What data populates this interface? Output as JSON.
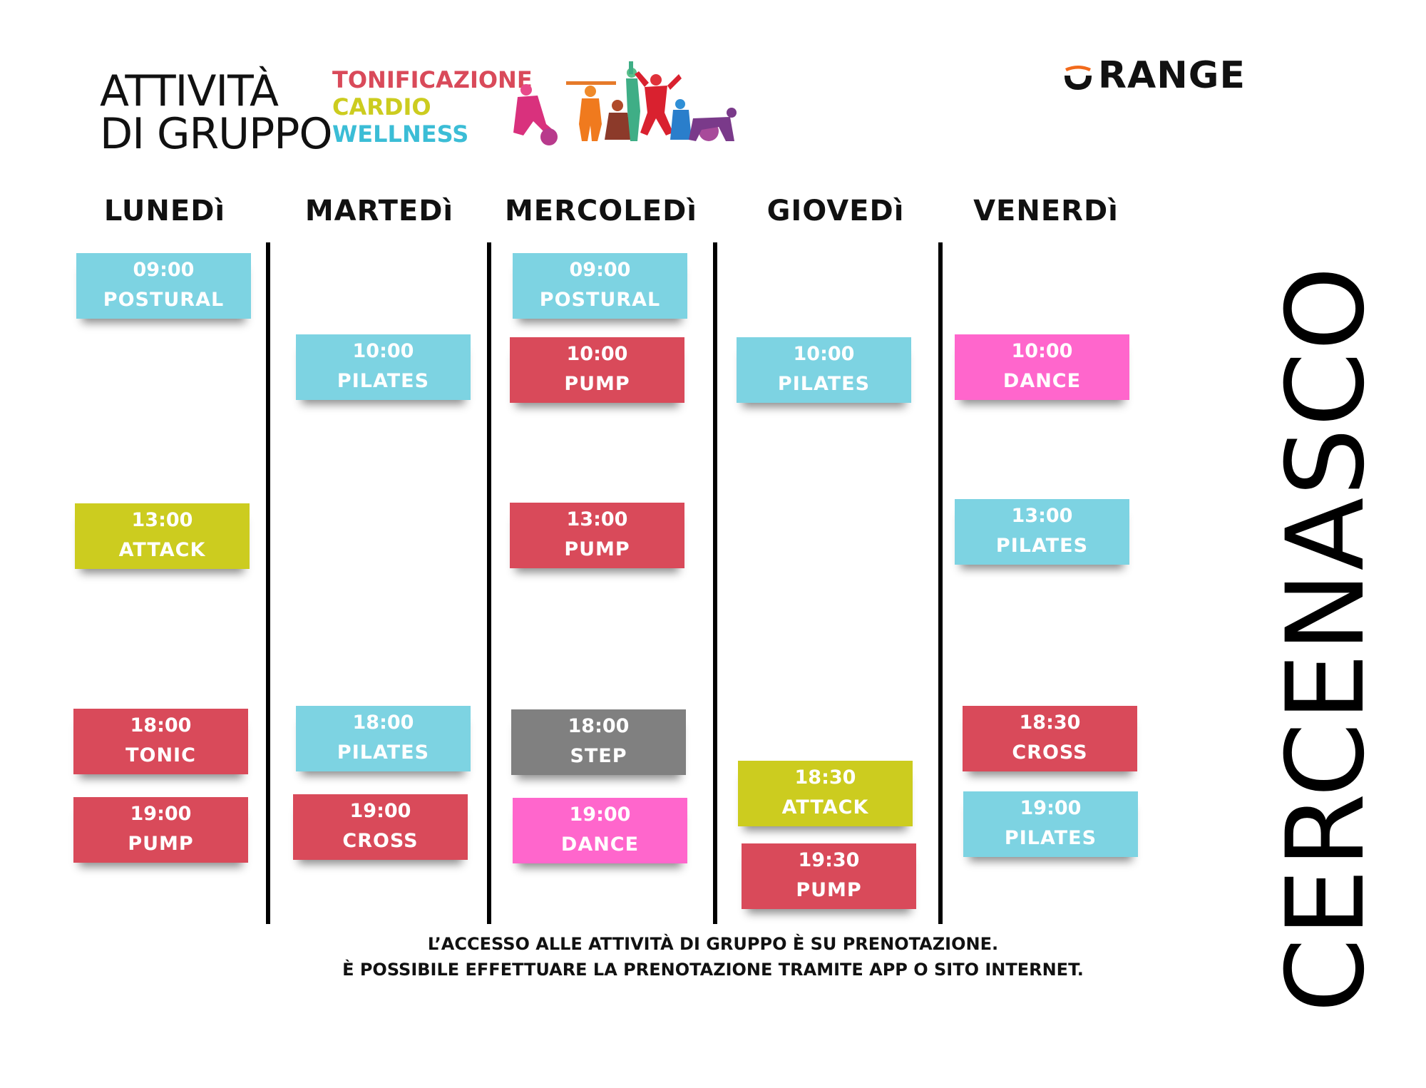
{
  "header": {
    "title_line1": "ATTIVITÀ",
    "title_line2": "DI GRUPPO",
    "categories": [
      {
        "label": "TONIFICAZIONE",
        "color": "#d94a5a"
      },
      {
        "label": "CARDIO",
        "color": "#cccc1f"
      },
      {
        "label": "WELLNESS",
        "color": "#3bbdd6"
      }
    ],
    "brand": "RANGE",
    "brand_accent": "#f26a1b"
  },
  "location": "CERCENASCO",
  "colors": {
    "wellness": "#7dd3e2",
    "tonificazione": "#d94a5a",
    "cardio": "#cccc1f",
    "dance": "#ff66cc",
    "step": "#808080"
  },
  "days": [
    {
      "name": "LUNEDì",
      "sessions": [
        {
          "time": "09:00",
          "name": "POSTURAL",
          "color": "#7dd3e2"
        },
        {
          "time": "13:00",
          "name": "ATTACK",
          "color": "#cccc1f"
        },
        {
          "time": "18:00",
          "name": "TONIC",
          "color": "#d94a5a"
        },
        {
          "time": "19:00",
          "name": "PUMP",
          "color": "#d94a5a"
        }
      ]
    },
    {
      "name": "MARTEDì",
      "sessions": [
        {
          "time": "10:00",
          "name": "PILATES",
          "color": "#7dd3e2"
        },
        {
          "time": "18:00",
          "name": "PILATES",
          "color": "#7dd3e2"
        },
        {
          "time": "19:00",
          "name": "CROSS",
          "color": "#d94a5a"
        }
      ]
    },
    {
      "name": "MERCOLEDì",
      "sessions": [
        {
          "time": "09:00",
          "name": "POSTURAL",
          "color": "#7dd3e2"
        },
        {
          "time": "10:00",
          "name": "PUMP",
          "color": "#d94a5a"
        },
        {
          "time": "13:00",
          "name": "PUMP",
          "color": "#d94a5a"
        },
        {
          "time": "18:00",
          "name": "STEP",
          "color": "#808080"
        },
        {
          "time": "19:00",
          "name": "DANCE",
          "color": "#ff66cc"
        }
      ]
    },
    {
      "name": "GIOVEDì",
      "sessions": [
        {
          "time": "10:00",
          "name": "PILATES",
          "color": "#7dd3e2"
        },
        {
          "time": "18:30",
          "name": "ATTACK",
          "color": "#cccc1f"
        },
        {
          "time": "19:30",
          "name": "PUMP",
          "color": "#d94a5a"
        }
      ]
    },
    {
      "name": "VENERDì",
      "sessions": [
        {
          "time": "10:00",
          "name": "DANCE",
          "color": "#ff66cc"
        },
        {
          "time": "13:00",
          "name": "PILATES",
          "color": "#7dd3e2"
        },
        {
          "time": "18:30",
          "name": "CROSS",
          "color": "#d94a5a"
        },
        {
          "time": "19:00",
          "name": "PILATES",
          "color": "#7dd3e2"
        }
      ]
    }
  ],
  "footer": {
    "line1": "L’ACCESSO ALLE ATTIVITÀ DI GRUPPO È SU PRENOTAZIONE.",
    "line2": "È POSSIBILE EFFETTUARE LA PRENOTAZIONE TRAMITE APP O SITO INTERNET."
  }
}
